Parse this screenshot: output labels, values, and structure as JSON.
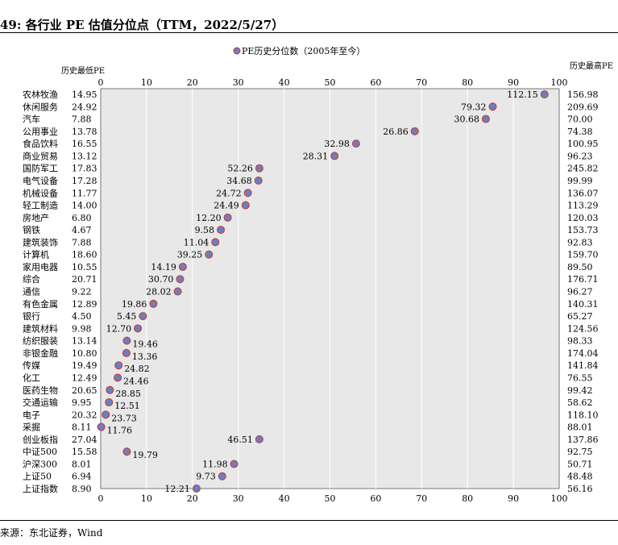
{
  "page": {
    "title": "49: 各行业 PE 估值分位点（TTM，2022/5/27）",
    "source": "来源：东北证券，Wind"
  },
  "colors": {
    "marker_fill": "#6a7fbf",
    "marker_stroke": "#d0342c",
    "plot_bg": "#e8e8e8",
    "grid": "#ffffff"
  },
  "chart_data": {
    "type": "scatter",
    "legend": {
      "label": "PE历史分位数（2005年至今）",
      "position": "top"
    },
    "corner_labels": {
      "left": "历史最低PE",
      "right": "历史最高PE"
    },
    "xlim": [
      0,
      100
    ],
    "xticks": [
      "0",
      "10",
      "20",
      "30",
      "40",
      "50",
      "60",
      "70",
      "80",
      "90",
      "100"
    ],
    "grid": true,
    "rows": [
      {
        "name": "农林牧渔",
        "min": "14.95",
        "max": "156.98",
        "pct": 96.8,
        "label": "112.15"
      },
      {
        "name": "休闲服务",
        "min": "24.92",
        "max": "209.69",
        "pct": 85.5,
        "label": "79.32"
      },
      {
        "name": "汽车",
        "min": "7.88",
        "max": "70.00",
        "pct": 84.0,
        "label": "30.68"
      },
      {
        "name": "公用事业",
        "min": "13.78",
        "max": "74.38",
        "pct": 68.5,
        "label": "26.86"
      },
      {
        "name": "食品饮料",
        "min": "16.55",
        "max": "100.95",
        "pct": 55.7,
        "label": "32.98"
      },
      {
        "name": "商业贸易",
        "min": "13.12",
        "max": "96.23",
        "pct": 51.0,
        "label": "28.31"
      },
      {
        "name": "国防军工",
        "min": "17.83",
        "max": "245.82",
        "pct": 34.6,
        "label": "52.26"
      },
      {
        "name": "电气设备",
        "min": "17.28",
        "max": "99.99",
        "pct": 34.4,
        "label": "34.68"
      },
      {
        "name": "机械设备",
        "min": "11.77",
        "max": "136.07",
        "pct": 32.1,
        "label": "24.72"
      },
      {
        "name": "轻工制造",
        "min": "14.00",
        "max": "113.29",
        "pct": 31.6,
        "label": "24.49"
      },
      {
        "name": "房地产",
        "min": "6.80",
        "max": "120.03",
        "pct": 27.7,
        "label": "12.20"
      },
      {
        "name": "钢铁",
        "min": "4.67",
        "max": "153.73",
        "pct": 26.2,
        "label": "9.58"
      },
      {
        "name": "建筑装饰",
        "min": "7.88",
        "max": "92.83",
        "pct": 25.0,
        "label": "11.04"
      },
      {
        "name": "计算机",
        "min": "18.60",
        "max": "159.70",
        "pct": 23.6,
        "label": "39.25"
      },
      {
        "name": "家用电器",
        "min": "10.55",
        "max": "89.50",
        "pct": 17.9,
        "label": "14.19"
      },
      {
        "name": "综合",
        "min": "20.71",
        "max": "176.71",
        "pct": 17.3,
        "label": "30.70"
      },
      {
        "name": "通信",
        "min": "9.22",
        "max": "96.27",
        "pct": 16.8,
        "label": "28.02"
      },
      {
        "name": "有色金属",
        "min": "12.89",
        "max": "140.31",
        "pct": 11.5,
        "label": "19.86"
      },
      {
        "name": "银行",
        "min": "4.50",
        "max": "65.27",
        "pct": 9.2,
        "label": "5.45"
      },
      {
        "name": "建筑材料",
        "min": "9.98",
        "max": "124.56",
        "pct": 8.1,
        "label": "12.70"
      },
      {
        "name": "纺织服装",
        "min": "13.14",
        "max": "98.33",
        "pct": 5.7,
        "label": "19.46"
      },
      {
        "name": "非银金融",
        "min": "10.80",
        "max": "174.04",
        "pct": 5.6,
        "label": "13.36"
      },
      {
        "name": "传媒",
        "min": "19.49",
        "max": "141.84",
        "pct": 3.9,
        "label": "24.82"
      },
      {
        "name": "化工",
        "min": "12.49",
        "max": "76.55",
        "pct": 3.7,
        "label": "24.46"
      },
      {
        "name": "医药生物",
        "min": "20.65",
        "max": "99.42",
        "pct": 2.0,
        "label": "28.85"
      },
      {
        "name": "交通运输",
        "min": "9.95",
        "max": "58.62",
        "pct": 1.8,
        "label": "12.51"
      },
      {
        "name": "电子",
        "min": "20.32",
        "max": "118.10",
        "pct": 1.1,
        "label": "23.73"
      },
      {
        "name": "采掘",
        "min": "8.11",
        "max": "88.01",
        "pct": 0.1,
        "label": "11.76"
      },
      {
        "name": "创业板指",
        "min": "27.04",
        "max": "137.86",
        "pct": 34.6,
        "label": "46.51"
      },
      {
        "name": "中证500",
        "min": "15.58",
        "max": "92.75",
        "pct": 5.7,
        "label": "19.79"
      },
      {
        "name": "沪深300",
        "min": "8.01",
        "max": "50.71",
        "pct": 29.1,
        "label": "11.98"
      },
      {
        "name": "上证50",
        "min": "6.94",
        "max": "48.48",
        "pct": 26.5,
        "label": "9.73"
      },
      {
        "name": "上证指数",
        "min": "8.90",
        "max": "56.16",
        "pct": 20.9,
        "label": "12.21"
      }
    ]
  }
}
